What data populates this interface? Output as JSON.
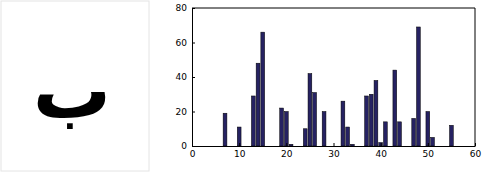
{
  "letter": "ب",
  "chart_data": {
    "type": "bar",
    "x": [
      7,
      10,
      13,
      14,
      15,
      19,
      20,
      21,
      24,
      25,
      26,
      28,
      32,
      33,
      34,
      37,
      38,
      39,
      40,
      41,
      43,
      44,
      47,
      48,
      50,
      51,
      55
    ],
    "values": [
      19,
      11,
      29,
      48,
      66,
      22,
      20,
      1,
      10,
      42,
      31,
      20,
      26,
      11,
      1,
      29,
      30,
      38,
      2,
      14,
      44,
      14,
      16,
      69,
      20,
      5,
      12
    ],
    "color": "#262262",
    "xlim": [
      0,
      60
    ],
    "xticks": [
      0,
      10,
      20,
      30,
      40,
      50,
      60
    ],
    "ylim": [
      0,
      80
    ],
    "yticks": [
      0,
      20,
      40,
      60,
      80
    ],
    "grid": false
  }
}
